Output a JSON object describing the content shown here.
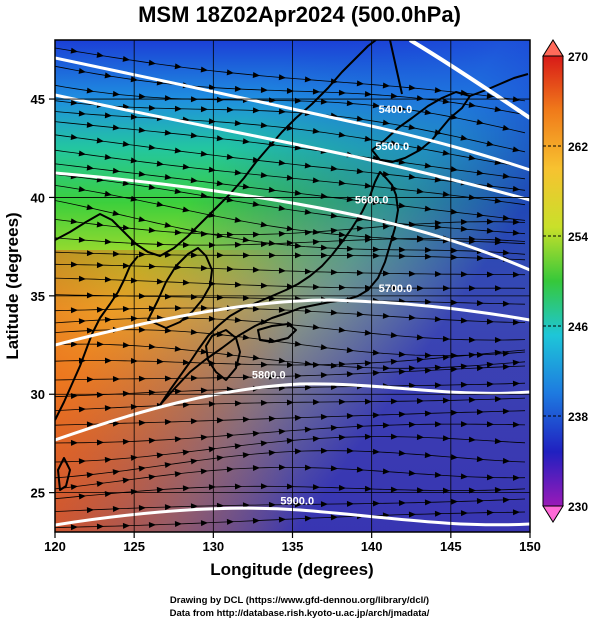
{
  "title": "MSM 18Z02Apr2024 (500.0hPa)",
  "map": {
    "xlabel": "Longitude (degrees)",
    "ylabel": "Latitude  (degrees)",
    "lon_range": [
      120,
      150
    ],
    "lat_range": [
      23,
      48
    ],
    "lon_ticks": [
      "120",
      "125",
      "130",
      "135",
      "140",
      "145",
      "150"
    ],
    "lat_ticks": [
      "25",
      "30",
      "35",
      "40",
      "45"
    ],
    "contour_labels": [
      {
        "text": "5400.0",
        "lon": 141.5,
        "lat": 44.3
      },
      {
        "text": "5500.0",
        "lon": 141.3,
        "lat": 42.4
      },
      {
        "text": "5600.0",
        "lon": 140.0,
        "lat": 39.7
      },
      {
        "text": "5700.0",
        "lon": 141.5,
        "lat": 35.2
      },
      {
        "text": "5800.0",
        "lon": 133.5,
        "lat": 30.8
      },
      {
        "text": "5900.0",
        "lon": 135.3,
        "lat": 24.4
      }
    ]
  },
  "colorbar": {
    "labels": [
      "270",
      "262",
      "254",
      "246",
      "238",
      "230"
    ],
    "min": 230,
    "max": 270,
    "colors": [
      "#d81a18",
      "#f07a1a",
      "#f7c230",
      "#c9e02a",
      "#36c83a",
      "#1ec6d8",
      "#1e7ae0",
      "#2020c0",
      "#9a1ab8"
    ]
  },
  "credits": {
    "line1": "Drawing by DCL (https://www.gfd-dennou.org/library/dcl/)",
    "line2": "Data from http://database.rish.kyoto-u.ac.jp/arch/jmadata/"
  }
}
